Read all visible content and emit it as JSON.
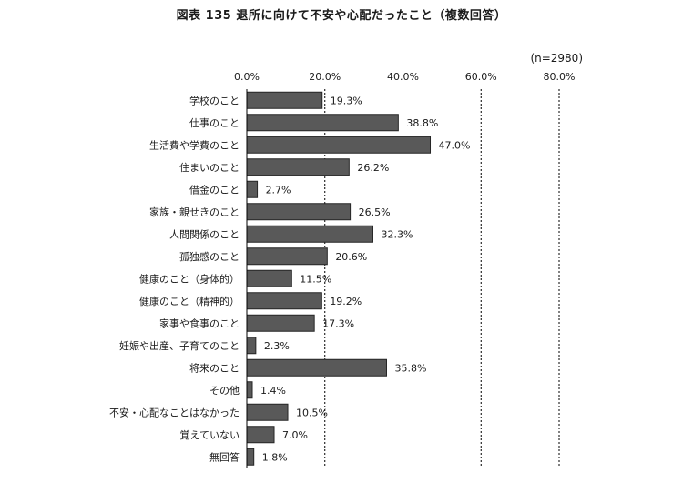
{
  "header": {
    "title": "図表 135 退所に向けて不安や心配だったこと（複数回答）",
    "sample_size": "(n=2980)"
  },
  "colors": {
    "bar_fill": "#595959",
    "bar_stroke": "#262626",
    "axis": "#000000",
    "gridline": "#000000"
  },
  "chart_data": {
    "type": "bar",
    "orientation": "horizontal",
    "title": "図表 135 退所に向けて不安や心配だったこと（複数回答）",
    "subtitle": "(n=2980)",
    "xlabel": "",
    "ylabel": "",
    "xlim": [
      0,
      80
    ],
    "x_ticks": [
      "0.0%",
      "20.0%",
      "40.0%",
      "60.0%",
      "80.0%"
    ],
    "x_tick_values": [
      0,
      20,
      40,
      60,
      80
    ],
    "grid": "vertical dashed",
    "legend": "none",
    "categories": [
      "学校のこと",
      "仕事のこと",
      "生活費や学費のこと",
      "住まいのこと",
      "借金のこと",
      "家族・親せきのこと",
      "人間関係のこと",
      "孤独感のこと",
      "健康のこと（身体的）",
      "健康のこと（精神的）",
      "家事や食事のこと",
      "妊娠や出産、子育てのこと",
      "将来のこと",
      "その他",
      "不安・心配なことはなかった",
      "覚えていない",
      "無回答"
    ],
    "values": [
      19.3,
      38.8,
      47.0,
      26.2,
      2.7,
      26.5,
      32.3,
      20.6,
      11.5,
      19.2,
      17.3,
      2.3,
      35.8,
      1.4,
      10.5,
      7.0,
      1.8
    ],
    "value_labels": [
      "19.3%",
      "38.8%",
      "47.0%",
      "26.2%",
      "2.7%",
      "26.5%",
      "32.3%",
      "20.6%",
      "11.5%",
      "19.2%",
      "17.3%",
      "2.3%",
      "35.8%",
      "1.4%",
      "10.5%",
      "7.0%",
      "1.8%"
    ]
  }
}
